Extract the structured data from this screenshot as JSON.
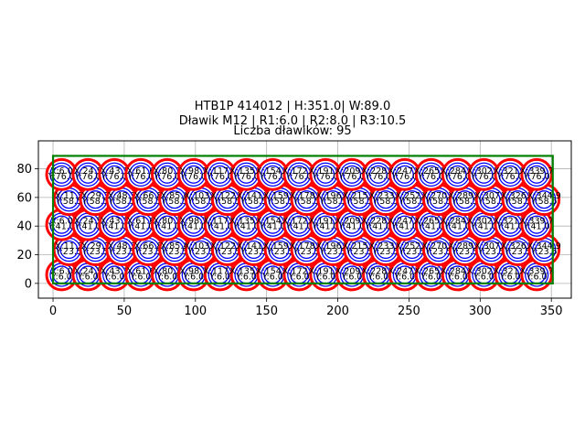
{
  "titles": {
    "line1": "HTB1P 414012 | H:351.0| W:89.0",
    "line2": "Dławik M12 | R1:6.0 | R2:8.0 | R3:10.5",
    "line3": "Liczba dławików: 95"
  },
  "colors": {
    "outer_ring": "#ff0000",
    "inner_rings": "#0000ff",
    "boundary": "#008000",
    "grid": "#b0b0b0"
  },
  "chart_data": {
    "type": "scatter",
    "title": "HTB1P 414012 | H:351.0| W:89.0 / Dławik M12 | R1:6.0 | R2:8.0 | R3:10.5 / Liczba dławików: 95",
    "xlabel": "",
    "ylabel": "",
    "xlim": [
      -10.3,
      364
    ],
    "ylim": [
      -10.3,
      99.5
    ],
    "xticks": [
      0,
      50,
      100,
      150,
      200,
      250,
      300,
      350
    ],
    "yticks": [
      0,
      20,
      40,
      60,
      80
    ],
    "grid": true,
    "legend": null,
    "boundary_rect": {
      "x": 0,
      "y": 0,
      "width": 351.0,
      "height": 89.0
    },
    "radii": {
      "R1": 6.0,
      "R2": 8.0,
      "R3": 10.5
    },
    "count": 95,
    "rows": [
      {
        "y": 6.0,
        "x_start": 6.0,
        "x_step": 18.54,
        "n": 19
      },
      {
        "y": 23.5,
        "x_start": 11.2,
        "x_step": 18.54,
        "n": 19
      },
      {
        "y": 41.0,
        "x_start": 6.0,
        "x_step": 18.54,
        "n": 19
      },
      {
        "y": 58.5,
        "x_start": 11.2,
        "x_step": 18.54,
        "n": 19
      },
      {
        "y": 76.0,
        "x_start": 6.0,
        "x_step": 18.54,
        "n": 19
      }
    ]
  }
}
